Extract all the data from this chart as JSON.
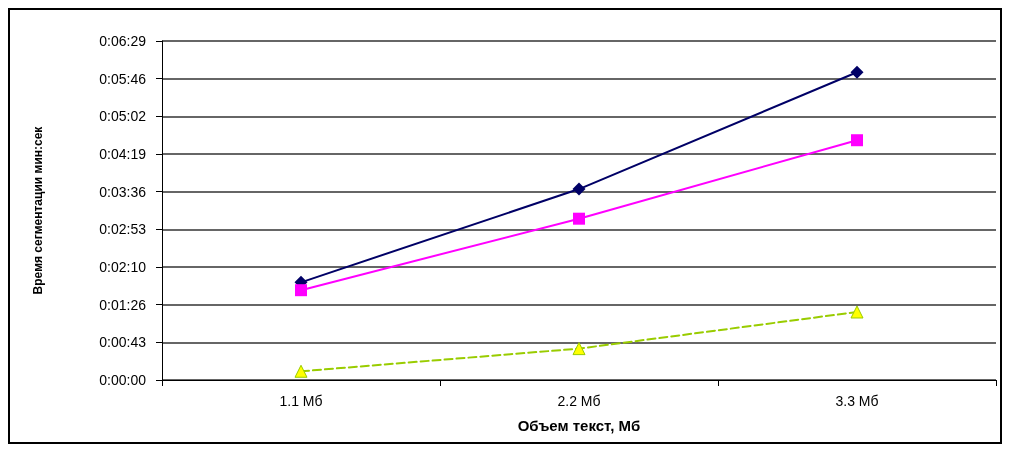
{
  "chart_data": {
    "type": "line",
    "xlabel": "Объем текст, Мб",
    "ylabel": "Время сегментации мин:сек",
    "categories": [
      "1.1 Мб",
      "2.2 Мб",
      "3.3 Мб"
    ],
    "series": [
      {
        "color": "#000066",
        "values": [
          112,
          219,
          353
        ],
        "marker": "diamond",
        "line_style": "solid"
      },
      {
        "color": "#ff00ff",
        "values": [
          103,
          185,
          275
        ],
        "marker": "square",
        "line_style": "solid"
      },
      {
        "color": "#99cc00",
        "colors": [
          "#ffff00",
          "#ffff00",
          "#ffff00"
        ],
        "values": [
          10,
          36,
          78
        ],
        "marker": "triangle",
        "line_style": "dashed"
      }
    ],
    "ylim": [
      0,
      388.8
    ],
    "yticks": [
      {
        "value": 0,
        "label": "0:00:00"
      },
      {
        "value": 43.2,
        "label": "0:00:43"
      },
      {
        "value": 86.4,
        "label": "0:01:26"
      },
      {
        "value": 129.6,
        "label": "0:02:10"
      },
      {
        "value": 172.8,
        "label": "0:02:53"
      },
      {
        "value": 216,
        "label": "0:03:36"
      },
      {
        "value": 259.2,
        "label": "0:04:19"
      },
      {
        "value": 302.4,
        "label": "0:05:02"
      },
      {
        "value": 345.6,
        "label": "0:05:46"
      },
      {
        "value": 388.8,
        "label": "0:06:29"
      }
    ],
    "grid": "y"
  }
}
